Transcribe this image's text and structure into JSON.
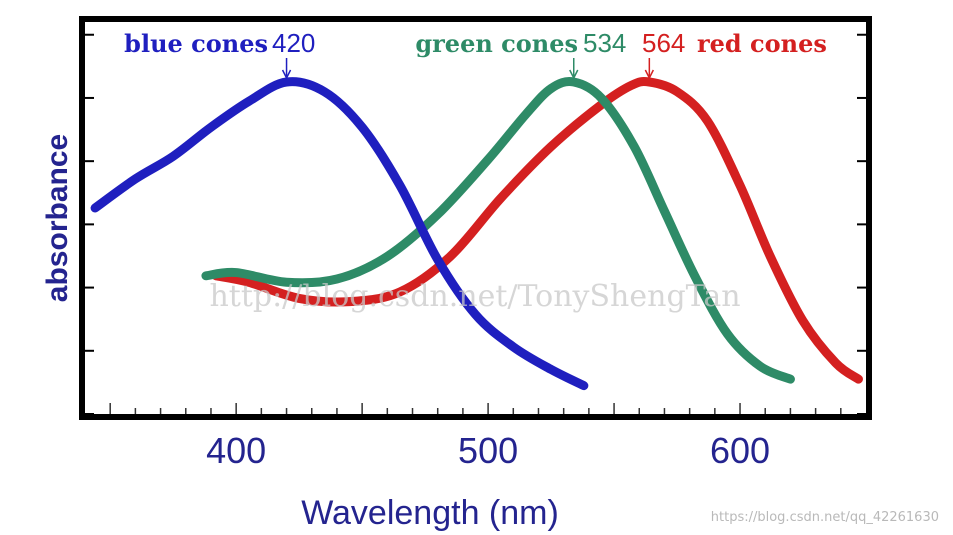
{
  "chart_data": {
    "type": "line",
    "xlabel": "Wavelength (nm)",
    "ylabel": "absorbance",
    "xlim": [
      340,
      650
    ],
    "ylim": [
      0,
      1.1
    ],
    "x_ticks": [
      400,
      500,
      600
    ],
    "x_ticklabels": [
      "400",
      "500",
      "600"
    ],
    "series": [
      {
        "name": "blue cones",
        "peak_label": "420",
        "peak": 420,
        "color": "#1f1fbf",
        "points": [
          [
            344,
            0.61
          ],
          [
            360,
            0.7
          ],
          [
            375,
            0.77
          ],
          [
            390,
            0.86
          ],
          [
            405,
            0.94
          ],
          [
            420,
            1.0
          ],
          [
            435,
            0.97
          ],
          [
            450,
            0.86
          ],
          [
            465,
            0.68
          ],
          [
            480,
            0.45
          ],
          [
            495,
            0.28
          ],
          [
            510,
            0.18
          ],
          [
            525,
            0.11
          ],
          [
            538,
            0.06
          ]
        ]
      },
      {
        "name": "green cones",
        "peak_label": "534",
        "peak": 534,
        "color": "#2e8b67",
        "points": [
          [
            388,
            0.4
          ],
          [
            400,
            0.41
          ],
          [
            420,
            0.38
          ],
          [
            440,
            0.39
          ],
          [
            460,
            0.46
          ],
          [
            480,
            0.59
          ],
          [
            500,
            0.76
          ],
          [
            515,
            0.9
          ],
          [
            525,
            0.98
          ],
          [
            534,
            1.0
          ],
          [
            545,
            0.95
          ],
          [
            558,
            0.8
          ],
          [
            570,
            0.6
          ],
          [
            582,
            0.4
          ],
          [
            595,
            0.22
          ],
          [
            608,
            0.12
          ],
          [
            620,
            0.08
          ]
        ]
      },
      {
        "name": "red cones",
        "peak_label": "564",
        "peak": 564,
        "color": "#d42020",
        "points": [
          [
            392,
            0.4
          ],
          [
            405,
            0.38
          ],
          [
            425,
            0.33
          ],
          [
            445,
            0.32
          ],
          [
            465,
            0.35
          ],
          [
            485,
            0.46
          ],
          [
            505,
            0.64
          ],
          [
            525,
            0.8
          ],
          [
            545,
            0.93
          ],
          [
            557,
            0.99
          ],
          [
            564,
            1.0
          ],
          [
            575,
            0.97
          ],
          [
            587,
            0.88
          ],
          [
            600,
            0.68
          ],
          [
            612,
            0.46
          ],
          [
            625,
            0.26
          ],
          [
            638,
            0.13
          ],
          [
            647,
            0.08
          ]
        ]
      }
    ],
    "watermark": "http://blog.csdn.net/TonyShengTan",
    "credit": "https://blog.csdn.net/qq_42261630"
  }
}
